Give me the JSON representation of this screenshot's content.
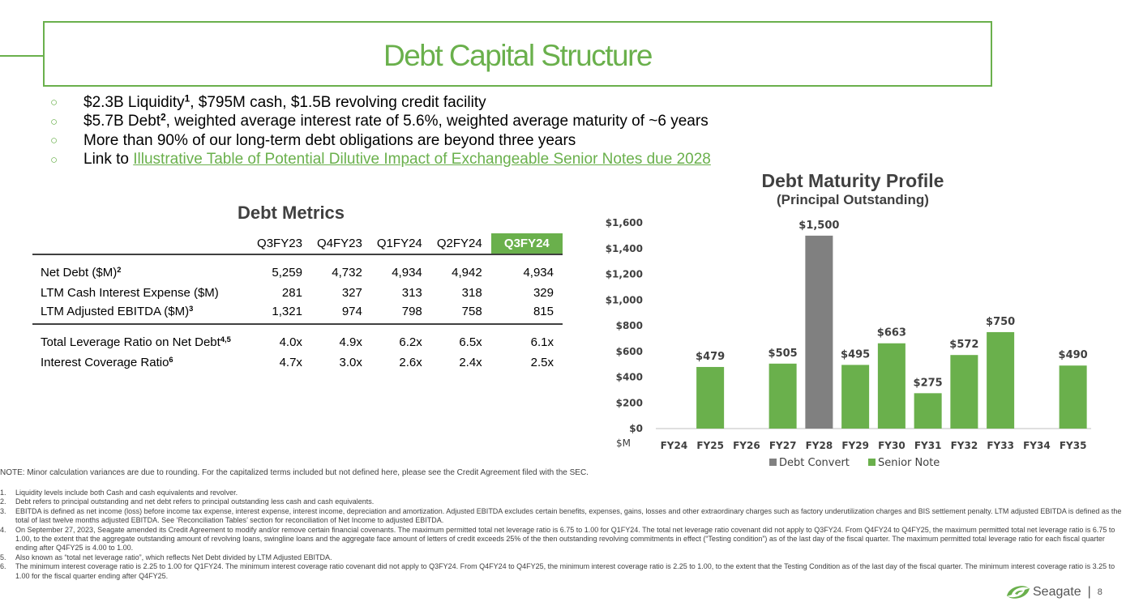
{
  "title": "Debt Capital Structure",
  "bullets": [
    {
      "text": "$2.3B Liquidity",
      "sup": "1",
      "rest": ", $795M cash, $1.5B revolving credit facility"
    },
    {
      "text": "$5.7B Debt",
      "sup": "2",
      "rest": ", weighted average interest rate of 5.6%, weighted average maturity of ~6 years"
    },
    {
      "text": "More than 90% of our long-term debt obligations are beyond three years",
      "sup": "",
      "rest": ""
    },
    {
      "text": "Link to ",
      "link": "Illustrative Table of Potential Dilutive Impact of Exchangeable Senior Notes due 2028"
    }
  ],
  "metrics": {
    "title": "Debt Metrics",
    "columns": [
      "Q3FY23",
      "Q4FY23",
      "Q1FY24",
      "Q2FY24",
      "Q3FY24"
    ],
    "rows": [
      {
        "label": "Net Debt ($M)",
        "sup": "2",
        "values": [
          "5,259",
          "4,732",
          "4,934",
          "4,942",
          "4,934"
        ]
      },
      {
        "label": "LTM Cash Interest Expense ($M)",
        "sup": "",
        "values": [
          "281",
          "327",
          "313",
          "318",
          "329"
        ]
      },
      {
        "label": "LTM Adjusted EBITDA ($M)",
        "sup": "3",
        "values": [
          "1,321",
          "974",
          "798",
          "758",
          "815"
        ]
      },
      {
        "label": "Total Leverage Ratio on Net Debt",
        "sup": "4,5",
        "values": [
          "4.0x",
          "4.9x",
          "6.2x",
          "6.5x",
          "6.1x"
        ]
      },
      {
        "label": "Interest Coverage Ratio",
        "sup": "6",
        "values": [
          "4.7x",
          "3.0x",
          "2.6x",
          "2.4x",
          "2.5x"
        ]
      }
    ]
  },
  "chart_title": "Debt Maturity Profile",
  "chart_subtitle": "(Principal Outstanding)",
  "chart_data": {
    "type": "bar",
    "title": "Debt Maturity Profile",
    "subtitle": "(Principal Outstanding)",
    "ylabel": "$M",
    "ylim": [
      0,
      1600
    ],
    "yticks": [
      "$0",
      "$200",
      "$400",
      "$600",
      "$800",
      "$1,000",
      "$1,200",
      "$1,400",
      "$1,600"
    ],
    "categories": [
      "FY24",
      "FY25",
      "FY26",
      "FY27",
      "FY28",
      "FY29",
      "FY30",
      "FY31",
      "FY32",
      "FY33",
      "FY34",
      "FY35"
    ],
    "series": [
      {
        "name": "Debt Convert",
        "color": "#808080",
        "values": [
          null,
          null,
          null,
          null,
          1500,
          null,
          null,
          null,
          null,
          null,
          null,
          null
        ]
      },
      {
        "name": "Senior Note",
        "color": "#6ab04c",
        "values": [
          null,
          479,
          null,
          505,
          null,
          495,
          663,
          275,
          572,
          750,
          null,
          490
        ]
      }
    ],
    "data_labels": [
      "",
      "$479",
      "",
      "$505",
      "$1,500",
      "$495",
      "$663",
      "$275",
      "$572",
      "$750",
      "",
      "$490"
    ],
    "legend": "bottom",
    "grid": false
  },
  "note": "NOTE: Minor calculation variances are due to rounding. For the capitalized terms included but not defined here, please see the Credit Agreement filed with the SEC.",
  "footnotes": [
    {
      "num": "1.",
      "text": "Liquidity levels include both Cash and cash equivalents and revolver."
    },
    {
      "num": "2.",
      "text": "Debt refers to principal outstanding and net debt refers to principal outstanding less cash and cash equivalents."
    },
    {
      "num": "3.",
      "text": "EBITDA is defined as net income (loss) before income tax expense, interest expense, interest income, depreciation and amortization. Adjusted EBITDA excludes certain benefits, expenses, gains, losses and other extraordinary charges such as factory underutilization charges and BIS settlement penalty. LTM adjusted EBITDA is defined as the total of last twelve months adjusted EBITDA. See ‘Reconciliation Tables’ section for reconciliation of Net Income to adjusted EBITDA."
    },
    {
      "num": "4.",
      "text": "On September 27, 2023, Seagate amended its Credit Agreement to modify and/or remove certain financial covenants. The maximum permitted total net leverage ratio is 6.75 to 1.00 for Q1FY24. The total net leverage ratio covenant did not apply to Q3FY24. From Q4FY24 to Q4FY25, the maximum permitted total net leverage ratio is 6.75 to 1.00, to the extent that the aggregate outstanding amount of revolving loans, swingline loans and the aggregate face amount of letters of credit exceeds 25% of the then outstanding revolving commitments in effect (“Testing condition”) as of the last day of the fiscal quarter. The maximum permitted total leverage ratio for each fiscal quarter ending after Q4FY25 is 4.00 to 1.00."
    },
    {
      "num": "5.",
      "text": "Also known as “total net leverage ratio”, which reflects Net Debt divided by LTM Adjusted EBITDA."
    },
    {
      "num": "6.",
      "text": "The minimum interest coverage ratio is 2.25 to 1.00 for Q1FY24. The minimum interest coverage ratio covenant did not apply to Q3FY24. From Q4FY24 to Q4FY25, the minimum interest coverage ratio is 2.25 to 1.00, to the extent that the Testing Condition as of the last day of the fiscal quarter. The minimum interest coverage ratio is 3.25 to 1.00 for the fiscal quarter ending after Q4FY25."
    }
  ],
  "brand": {
    "name": "Seagate",
    "separator": "|",
    "page": "8",
    "accent": "#6ab04c"
  }
}
